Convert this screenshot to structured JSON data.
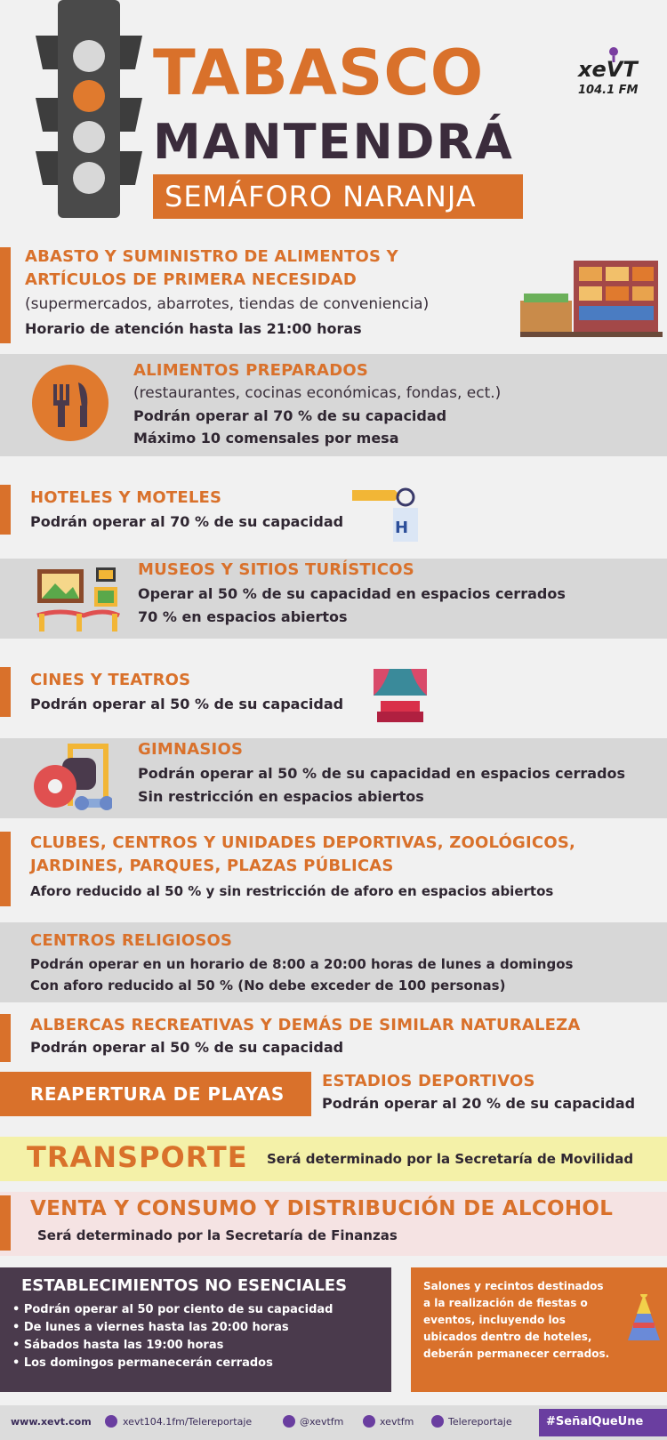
{
  "header": {
    "title_line1": "TABASCO",
    "title_line2": "MANTENDRÁ",
    "title_line3": "SEMÁFORO NARANJA",
    "logo_name": "xeVT",
    "logo_freq": "104.1 FM"
  },
  "sections": {
    "abasto": {
      "title1": "ABASTO Y SUMINISTRO DE ALIMENTOS Y",
      "title2": "ARTÍCULOS DE PRIMERA NECESIDAD",
      "detail": "(supermercados, abarrotes, tiendas de conveniencia)",
      "note": "Horario de atención hasta las 21:00 horas",
      "icon": "grocery-store-icon"
    },
    "alimentos": {
      "title": "ALIMENTOS PREPARADOS",
      "detail": "(restaurantes, cocinas económicas, fondas, ect.)",
      "note1": "Podrán operar al 70 % de su capacidad",
      "note2": "Máximo 10 comensales por mesa",
      "icon": "fork-knife-icon"
    },
    "hoteles": {
      "title": "HOTELES Y MOTELES",
      "note": "Podrán operar al 70 % de su capacidad",
      "icon": "hotel-tag-icon",
      "icon_letter": "H"
    },
    "museos": {
      "title": "MUSEOS Y SITIOS TURÍSTICOS",
      "note1": "Operar al 50 % de su capacidad en espacios cerrados",
      "note2": "70 % en espacios abiertos",
      "icon": "museum-icon"
    },
    "cines": {
      "title": "CINES Y TEATROS",
      "note": "Podrán operar al 50 % de su capacidad",
      "icon": "theater-icon"
    },
    "gimnasios": {
      "title": "GIMNASIOS",
      "note1": "Podrán operar al 50 % de su capacidad en espacios cerrados",
      "note2": "Sin restricción en espacios abiertos",
      "icon": "gym-icon"
    },
    "clubes": {
      "title1": "CLUBES, CENTROS Y UNIDADES DEPORTIVAS, ZOOLÓGICOS,",
      "title2": "JARDINES, PARQUES, PLAZAS PÚBLICAS",
      "note": "Aforo reducido al 50 % y sin restricción de aforo en espacios abiertos"
    },
    "religiosos": {
      "title": "CENTROS RELIGIOSOS",
      "note1": "Podrán operar en un horario de 8:00 a 20:00 horas de lunes a domingos",
      "note2": "Con aforo reducido al 50 %  (No debe exceder de 100 personas)"
    },
    "albercas": {
      "title": "ALBERCAS RECREATIVAS Y DEMÁS DE SIMILAR NATURALEZA",
      "note": "Podrán operar al 50 % de su capacidad"
    },
    "playas": {
      "title": "REAPERTURA DE PLAYAS"
    },
    "estadios": {
      "title": "ESTADIOS DEPORTIVOS",
      "note": "Podrán operar al 20 % de su capacidad"
    },
    "transporte": {
      "title": "TRANSPORTE",
      "note": "Será determinado por la Secretaría de Movilidad"
    },
    "alcohol": {
      "title": "VENTA Y CONSUMO Y DISTRIBUCIÓN DE ALCOHOL",
      "note": "Será determinado por la Secretaría de Finanzas"
    },
    "no_esenciales": {
      "title": "ESTABLECIMIENTOS NO ESENCIALES",
      "items": [
        "• Podrán operar al 50 por ciento de su capacidad",
        "• De lunes a viernes hasta las 20:00 horas",
        "• Sábados hasta las 19:00 horas",
        "• Los domingos permanecerán cerrados"
      ]
    },
    "salones": {
      "line1": "Salones y recintos destinados",
      "line2": "a la realización de fiestas o",
      "line3": "eventos, incluyendo los",
      "line4": "ubicados dentro de hoteles,",
      "line5": "deberán permanecer cerrados.",
      "icon": "party-hat-icon"
    }
  },
  "footer": {
    "website": "www.xevt.com",
    "facebook": "xevt104.1fm/Telereportaje",
    "twitter": "@xevtfm",
    "instagram": "xevtfm",
    "youtube": "Telereportaje",
    "hashtag": "#SeñalQueUne"
  },
  "colors": {
    "orange": "#d9712b",
    "purple": "#4a3a4c",
    "gray": "#d7d7d7",
    "yellow": "#f4f1a8",
    "pink": "#f5e3e3"
  }
}
